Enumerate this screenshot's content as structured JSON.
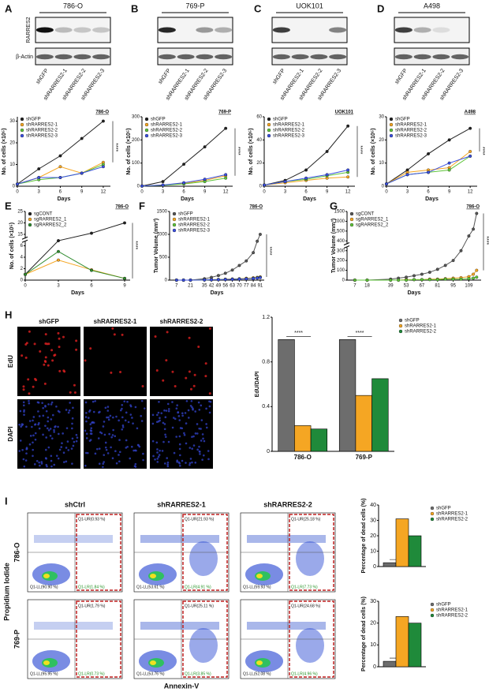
{
  "panel_labels": [
    "A",
    "B",
    "C",
    "D",
    "E",
    "F",
    "G",
    "H",
    "I"
  ],
  "blots": {
    "row_labels": [
      "RARRES2",
      "β-Actin"
    ],
    "titles": [
      "786-O",
      "769-P",
      "UOK101",
      "A498"
    ],
    "lanes": [
      "shGFP",
      "shRARRES2-1",
      "shRARRES2-2",
      "shRARRES2-3"
    ]
  },
  "microscopy": {
    "columns": [
      "shGFP",
      "shRARRES2-1",
      "shRARRES2-2"
    ],
    "rows": [
      "EdU",
      "DAPI"
    ]
  },
  "flow": {
    "columns": [
      "shCtrl",
      "shRARRES2-1",
      "shRARRES2-2"
    ],
    "rows": [
      "786-O",
      "769-P"
    ],
    "y_label": "Propidium Iodide",
    "x_label": "Annexin-V",
    "quadrants": [
      [
        [
          "Q1-UR(0.93 %)",
          "Q1-LR(1.84 %)",
          "Q1-LL(90.90 %)"
        ],
        [
          "Q1-UR(21.93 %)",
          "Q1-LR(4.91 %)",
          "Q1-LL(53.61 %)"
        ],
        [
          "Q1-UR(25.18 %)",
          "Q1-LR(7.73 %)",
          "Q1-LL(59.93 %)"
        ]
      ],
      [
        [
          "Q1-UR(1.79 %)",
          "Q1-LR(0.73 %)",
          "Q1-LL(95.95 %)"
        ],
        [
          "Q1-UR(25.11 %)",
          "Q1-LR(3.85 %)",
          "Q1-LL(53.76 %)"
        ],
        [
          "Q1-UR(24.68 %)",
          "Q1-LR(4.96 %)",
          "Q1-LL(52.08 %)"
        ]
      ]
    ]
  },
  "chart_data": [
    {
      "type": "line",
      "subtitle": "786-O",
      "x_label": "Days",
      "y_label": "No. of cells (×10⁵)",
      "annotation": "****",
      "legend": "upper left",
      "x": [
        0,
        3,
        6,
        9,
        12
      ],
      "xlim": [
        0,
        13
      ],
      "xticks": [
        0,
        3,
        6,
        9,
        12
      ],
      "ylim": [
        0,
        32
      ],
      "yticks": [
        0,
        10,
        20,
        30
      ],
      "series": [
        {
          "name": "shGFP",
          "color": "#222222",
          "values": [
            1,
            8,
            14,
            22,
            30
          ]
        },
        {
          "name": "shRARRES2-1",
          "color": "#f5a623",
          "values": [
            1,
            4,
            9,
            6,
            11
          ]
        },
        {
          "name": "shRARRES2-2",
          "color": "#5ec43a",
          "values": [
            1,
            3,
            4,
            6,
            10
          ]
        },
        {
          "name": "shRARRES2-3",
          "color": "#3b4fe0",
          "values": [
            1,
            4,
            4,
            6,
            9
          ]
        }
      ]
    },
    {
      "type": "line",
      "subtitle": "769-P",
      "x_label": "Days",
      "y_label": "No. of cells (×10⁵)",
      "annotation": "****",
      "legend": "upper left",
      "x": [
        0,
        3,
        6,
        9,
        12
      ],
      "xlim": [
        0,
        13
      ],
      "xticks": [
        0,
        3,
        6,
        9,
        12
      ],
      "ylim": [
        0,
        300
      ],
      "yticks": [
        0,
        100,
        200,
        300
      ],
      "series": [
        {
          "name": "shGFP",
          "color": "#222222",
          "values": [
            1,
            20,
            95,
            170,
            250
          ]
        },
        {
          "name": "shRARRES2-1",
          "color": "#f5a623",
          "values": [
            1,
            5,
            12,
            25,
            45
          ]
        },
        {
          "name": "shRARRES2-2",
          "color": "#5ec43a",
          "values": [
            1,
            4,
            10,
            20,
            35
          ]
        },
        {
          "name": "shRARRES2-3",
          "color": "#3b4fe0",
          "values": [
            1,
            5,
            15,
            30,
            50
          ]
        }
      ]
    },
    {
      "type": "line",
      "subtitle": "UOK101",
      "x_label": "Days",
      "y_label": "No. of cells (×10⁵)",
      "annotation": "****",
      "legend": "upper left",
      "x": [
        0,
        3,
        6,
        9,
        12
      ],
      "xlim": [
        0,
        13
      ],
      "xticks": [
        0,
        3,
        6,
        9,
        12
      ],
      "ylim": [
        0,
        60
      ],
      "yticks": [
        0,
        20,
        40,
        60
      ],
      "series": [
        {
          "name": "shGFP",
          "color": "#222222",
          "values": [
            1,
            5,
            14,
            30,
            52
          ]
        },
        {
          "name": "shRARRES2-1",
          "color": "#f5a623",
          "values": [
            1,
            3,
            5,
            7,
            8
          ]
        },
        {
          "name": "shRARRES2-2",
          "color": "#5ec43a",
          "values": [
            1,
            4,
            6,
            9,
            12
          ]
        },
        {
          "name": "shRARRES2-3",
          "color": "#3b4fe0",
          "values": [
            1,
            4,
            7,
            10,
            14
          ]
        }
      ]
    },
    {
      "type": "line",
      "subtitle": "A498",
      "x_label": "Days",
      "y_label": "No. of cells (×10⁵)",
      "annotation": "****",
      "legend": "upper left",
      "x": [
        0,
        3,
        6,
        9,
        12
      ],
      "xlim": [
        0,
        13
      ],
      "xticks": [
        0,
        3,
        6,
        9,
        12
      ],
      "ylim": [
        0,
        30
      ],
      "yticks": [
        0,
        10,
        20,
        30
      ],
      "series": [
        {
          "name": "shGFP",
          "color": "#222222",
          "values": [
            1,
            7,
            14,
            20,
            25
          ]
        },
        {
          "name": "shRARRES2-1",
          "color": "#f5a623",
          "values": [
            1,
            6,
            7,
            8,
            15
          ]
        },
        {
          "name": "shRARRES2-2",
          "color": "#5ec43a",
          "values": [
            1,
            5,
            6,
            7,
            13
          ]
        },
        {
          "name": "shRARRES2-3",
          "color": "#3b4fe0",
          "values": [
            1,
            5,
            6,
            10,
            13
          ]
        }
      ]
    },
    {
      "type": "line",
      "subtitle": "786-O",
      "x_label": "Days",
      "y_label": "No. of cells (×10⁵)",
      "annotation": "****",
      "legend": "upper left",
      "y_axis_break": true,
      "x": [
        0,
        3,
        6,
        9
      ],
      "xlim": [
        0,
        9.5
      ],
      "xticks": [
        0,
        3,
        6,
        9
      ],
      "ylim": [
        0,
        25
      ],
      "yticks": [
        0,
        2,
        4,
        6,
        15,
        20,
        25
      ],
      "series": [
        {
          "name": "sgCONT",
          "color": "#222222",
          "values": [
            1,
            10,
            15.5,
            20
          ]
        },
        {
          "name": "sgRARRES2_1",
          "color": "#f5a623",
          "values": [
            1,
            3.5,
            1.8,
            0.3
          ]
        },
        {
          "name": "sgRARRES2_2",
          "color": "#2e8b2e",
          "values": [
            1,
            5,
            1.7,
            0.3
          ]
        }
      ]
    },
    {
      "type": "line",
      "subtitle": "786-O",
      "x_label": "Days",
      "y_label": "Tumor Volume (mm³)",
      "annotation": "****",
      "legend": "upper left",
      "x": [
        7,
        14,
        21,
        35,
        42,
        49,
        56,
        63,
        70,
        77,
        84,
        88,
        91
      ],
      "xlim": [
        0,
        95
      ],
      "xticks": [
        7,
        21,
        35,
        42,
        49,
        56,
        63,
        70,
        77,
        84,
        91
      ],
      "ylim": [
        0,
        1500
      ],
      "yticks": [
        0,
        500,
        1000,
        1500
      ],
      "series": [
        {
          "name": "shGFP",
          "color": "#555555",
          "values": [
            0,
            0,
            0,
            30,
            60,
            100,
            150,
            220,
            320,
            420,
            600,
            850,
            1000
          ]
        },
        {
          "name": "shRARRES2-1",
          "color": "#f5a623",
          "values": [
            0,
            0,
            0,
            5,
            10,
            15,
            20,
            25,
            30,
            40,
            50,
            60,
            70
          ]
        },
        {
          "name": "shRARRES2-2",
          "color": "#5ec43a",
          "values": [
            0,
            0,
            0,
            5,
            8,
            12,
            15,
            20,
            25,
            30,
            40,
            50,
            60
          ]
        },
        {
          "name": "shRARRES2-3",
          "color": "#3b4fe0",
          "values": [
            0,
            0,
            0,
            4,
            8,
            10,
            14,
            18,
            22,
            28,
            35,
            45,
            55
          ]
        }
      ]
    },
    {
      "type": "line",
      "subtitle": "786-O",
      "x_label": "Days",
      "y_label": "Tumor Volume (mm³)",
      "annotation": "****",
      "legend": "upper left",
      "y_axis_break": true,
      "x": [
        7,
        18,
        39,
        46,
        53,
        60,
        67,
        74,
        81,
        88,
        95,
        102,
        109,
        113,
        116
      ],
      "xlim": [
        0,
        120
      ],
      "xticks": [
        7,
        18,
        39,
        53,
        67,
        81,
        95,
        109
      ],
      "ylim": [
        0,
        1500
      ],
      "yticks": [
        0,
        100,
        200,
        300,
        400,
        500,
        1000,
        1500
      ],
      "series": [
        {
          "name": "sgCONT",
          "color": "#555555",
          "values": [
            0,
            0,
            10,
            20,
            30,
            45,
            60,
            80,
            110,
            150,
            200,
            300,
            450,
            600,
            1400
          ]
        },
        {
          "name": "sgRARRES2_1",
          "color": "#f5a623",
          "values": [
            0,
            0,
            0,
            0,
            5,
            5,
            5,
            10,
            10,
            15,
            20,
            25,
            35,
            60,
            100
          ]
        },
        {
          "name": "sgRARRES2_2",
          "color": "#5ec43a",
          "values": [
            0,
            0,
            0,
            0,
            0,
            5,
            5,
            5,
            5,
            10,
            10,
            10,
            15,
            20,
            30
          ]
        }
      ]
    },
    {
      "type": "bar",
      "y_label": "EdU/DAPI",
      "annotation": "****",
      "legend": "right",
      "categories": [
        "786-O",
        "769-P"
      ],
      "ylim": [
        0,
        1.2
      ],
      "yticks": [
        0,
        0.4,
        0.8,
        1.2
      ],
      "series": [
        {
          "name": "shGFP",
          "color": "#6d6d6d",
          "values": [
            1.0,
            1.0
          ]
        },
        {
          "name": "shRARRES2-1",
          "color": "#f5a623",
          "values": [
            0.23,
            0.5
          ]
        },
        {
          "name": "shRARRES2-2",
          "color": "#1f8a3a",
          "values": [
            0.2,
            0.65
          ]
        }
      ]
    },
    {
      "type": "bar",
      "y_label": "Percentage of dead cells (%)",
      "annotation": "***",
      "legend": "right",
      "categories": [
        null
      ],
      "ylim": [
        0,
        40
      ],
      "yticks": [
        0,
        10,
        20,
        30,
        40
      ],
      "series": [
        {
          "name": "shGFP",
          "color": "#6d6d6d",
          "values": [
            2.5
          ]
        },
        {
          "name": "shRARRES2-1",
          "color": "#f5a623",
          "values": [
            31
          ]
        },
        {
          "name": "shRARRES2-2",
          "color": "#1f8a3a",
          "values": [
            20
          ]
        }
      ]
    },
    {
      "type": "bar",
      "y_label": "Percentage of dead cells (%)",
      "annotation": "***",
      "legend": "right",
      "categories": [
        null
      ],
      "ylim": [
        0,
        30
      ],
      "yticks": [
        0,
        10,
        20,
        30
      ],
      "series": [
        {
          "name": "shGFP",
          "color": "#6d6d6d",
          "values": [
            2.5
          ]
        },
        {
          "name": "shRARRES2-1",
          "color": "#f5a623",
          "values": [
            23
          ]
        },
        {
          "name": "shRARRES2-2",
          "color": "#1f8a3a",
          "values": [
            20
          ]
        }
      ]
    }
  ]
}
